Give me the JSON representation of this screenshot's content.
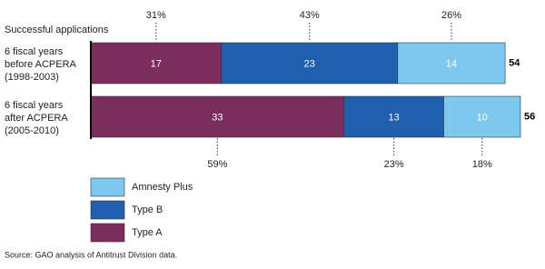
{
  "chart_data": {
    "type": "stacked-bar-horizontal",
    "title": "Successful applications",
    "categories": [
      "6 fiscal years\nbefore ACPERA\n(1998-2003)",
      "6 fiscal years\nafter ACPERA\n(2005-2010)"
    ],
    "series": [
      {
        "name": "Type A",
        "color": "#7b2d5e",
        "values": [
          17,
          33
        ],
        "percent_labels": [
          "31%",
          "59%"
        ]
      },
      {
        "name": "Type B",
        "color": "#1f5fae",
        "values": [
          23,
          13
        ],
        "percent_labels": [
          "43%",
          "23%"
        ]
      },
      {
        "name": "Amnesty Plus",
        "color": "#7cc8ef",
        "values": [
          14,
          10
        ],
        "percent_labels": [
          "26%",
          "18%"
        ]
      }
    ],
    "totals": [
      54,
      56
    ],
    "source": "Source: GAO analysis of Antitrust Division data."
  }
}
